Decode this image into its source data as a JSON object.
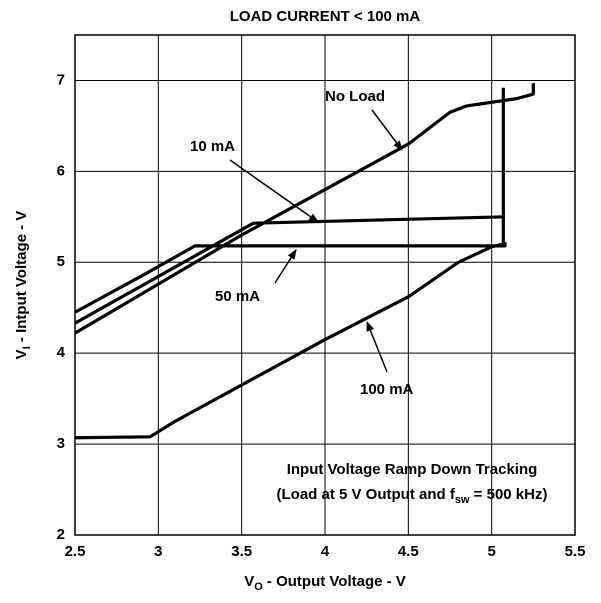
{
  "chart_data": {
    "type": "line",
    "title": "LOAD CURRENT < 100 mA",
    "x_label": {
      "main": "V",
      "sub": "O",
      "rest": " - Output Voltage - V"
    },
    "y_label": {
      "main": "V",
      "sub": "I",
      "rest": " - Intput Voltage - V"
    },
    "annotation": {
      "line1": "Input Voltage Ramp Down Tracking",
      "line2_start": "(Load at 5 V Output and f",
      "line2_sub": "sw",
      "line2_end": " = 500 kHz)"
    },
    "xlim": [
      2.5,
      5.5
    ],
    "xticks": [
      2.5,
      3,
      3.5,
      4,
      4.5,
      5,
      5.5
    ],
    "ylim": [
      2,
      7.5
    ],
    "yticks": [
      2,
      3,
      4,
      5,
      6,
      7
    ],
    "grid": true,
    "series": [
      {
        "name": "No Load",
        "color": "#000000",
        "x": [
          2.5,
          3.5,
          4,
          4.5,
          4.75,
          4.85,
          5.15,
          5.25,
          5.25
        ],
        "values": [
          4.22,
          5.3,
          5.8,
          6.3,
          6.65,
          6.72,
          6.8,
          6.85,
          6.97
        ]
      },
      {
        "name": "10 mA",
        "color": "#000000",
        "x": [
          2.5,
          3.57,
          5.08
        ],
        "values": [
          4.33,
          5.43,
          5.5
        ]
      },
      {
        "name": "50 mA",
        "color": "#000000",
        "x": [
          2.5,
          2.9,
          3.22,
          5.08,
          5.08
        ],
        "values": [
          4.45,
          4.85,
          5.18,
          5.18,
          5.22
        ]
      },
      {
        "name": "100 mA",
        "color": "#000000",
        "x": [
          2.5,
          2.95,
          3.1,
          3.5,
          4,
          4.5,
          4.8,
          5.0,
          5.07,
          5.07
        ],
        "values": [
          3.07,
          3.08,
          3.25,
          3.65,
          4.15,
          4.62,
          5.0,
          5.17,
          5.2,
          6.92
        ]
      }
    ]
  }
}
